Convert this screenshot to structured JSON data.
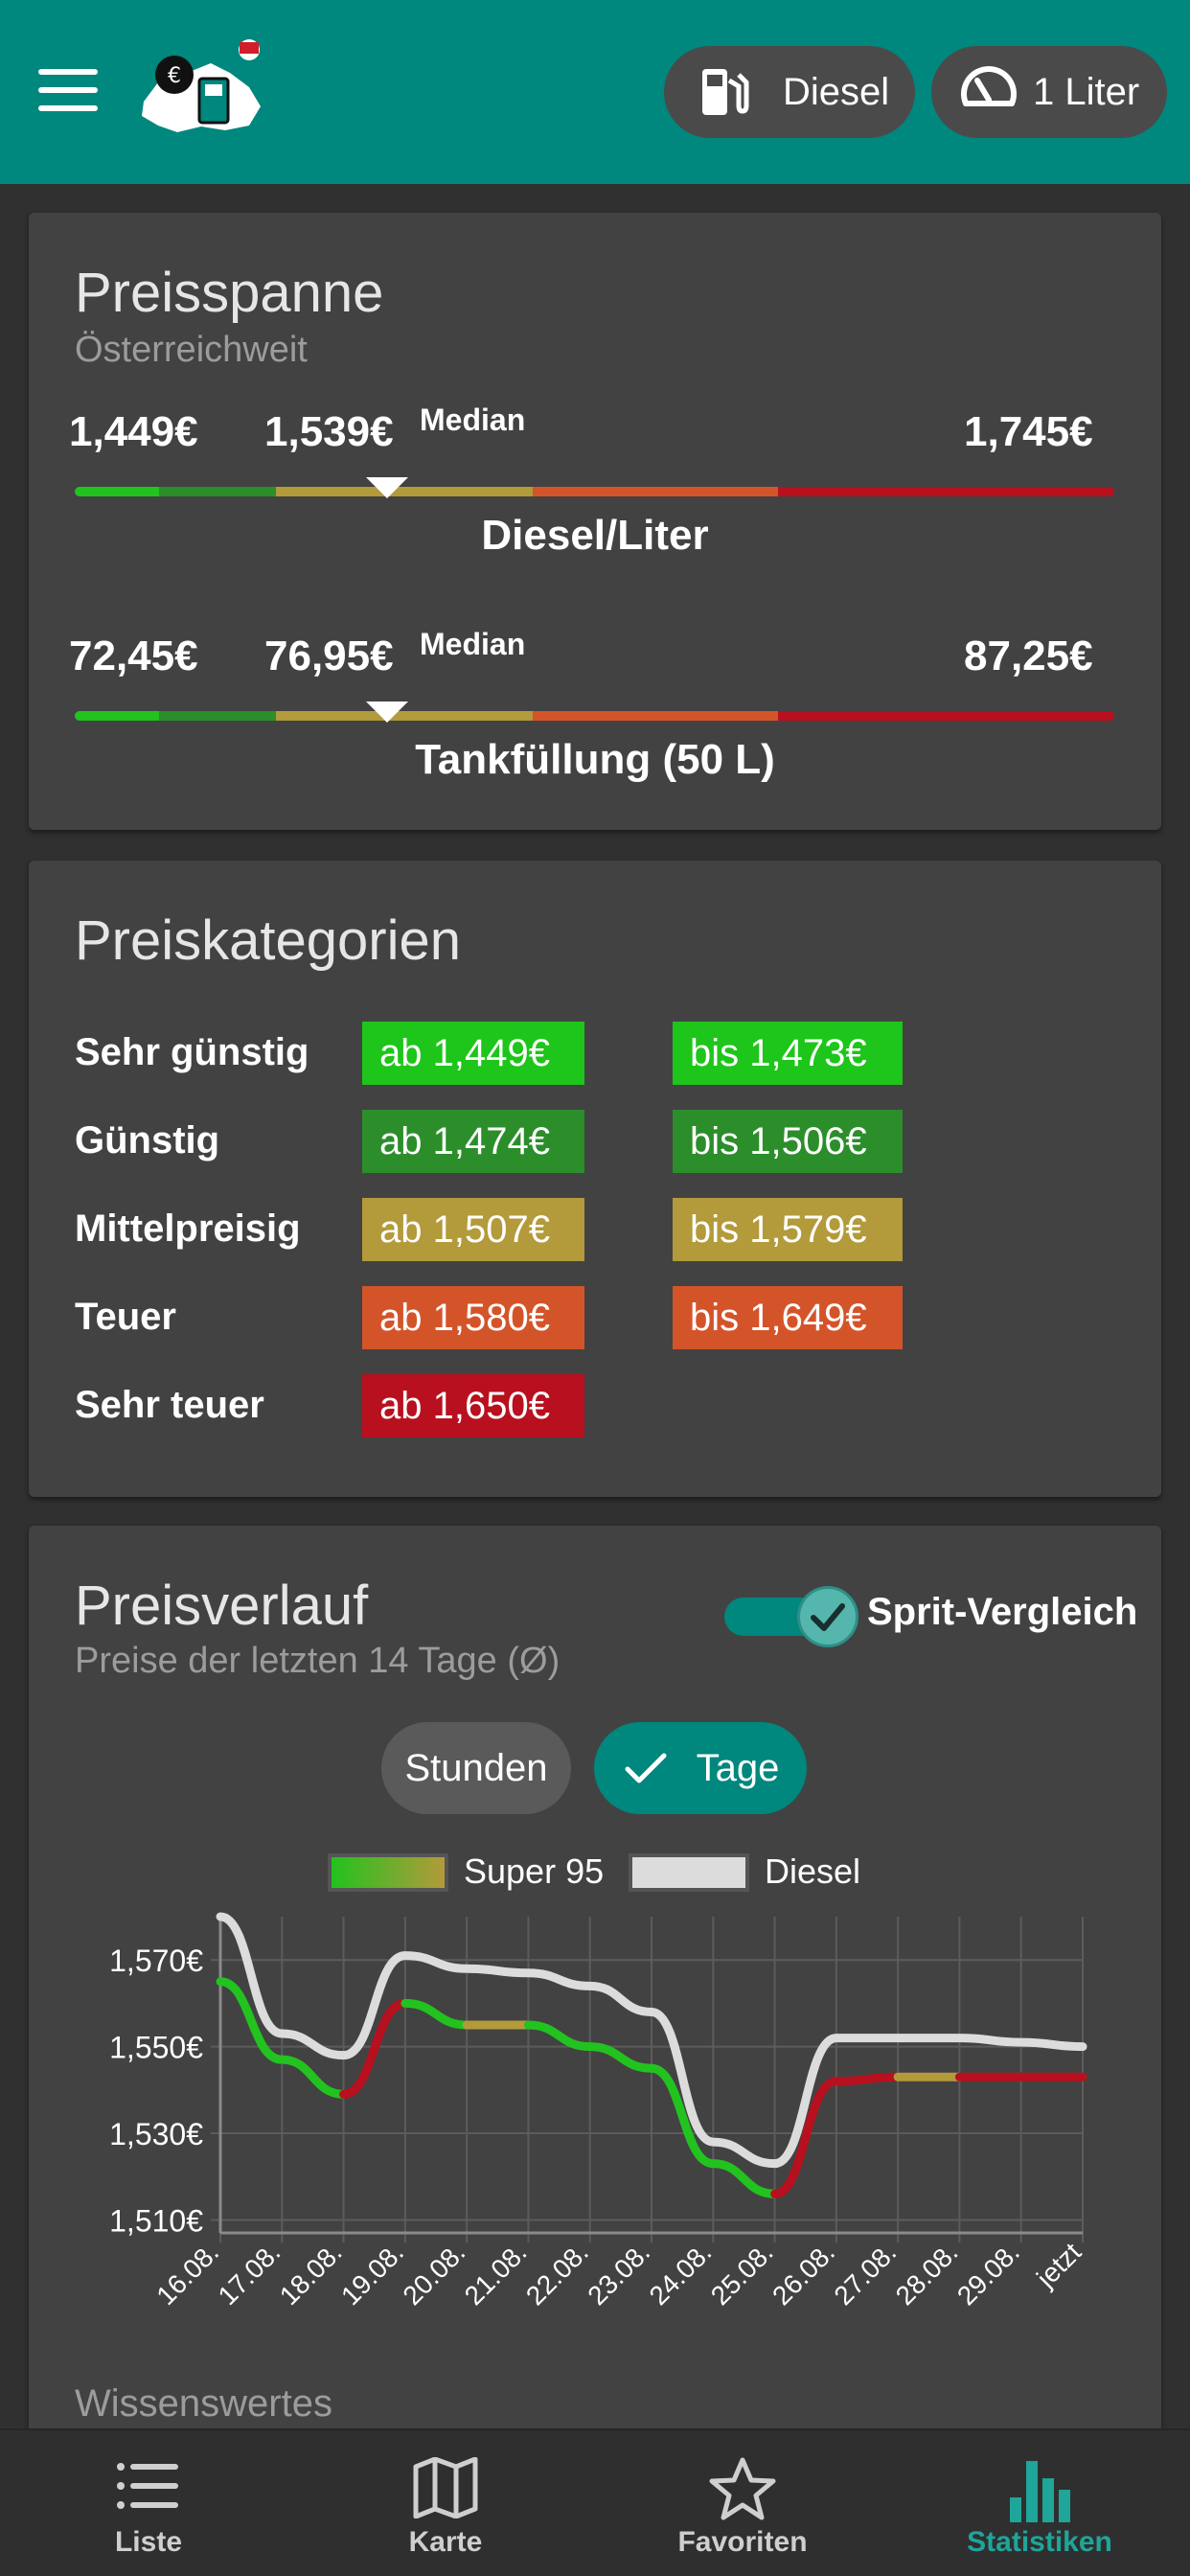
{
  "header": {
    "fuel_label": "Diesel",
    "unit_label": "1 Liter",
    "icons": [
      "menu-icon",
      "fuel-pump-icon",
      "speedometer-icon"
    ]
  },
  "price_span": {
    "title": "Preisspanne",
    "subtitle": "Österreichweit",
    "per_liter": {
      "min": "1,449€",
      "median": "1,539€",
      "median_label": "Median",
      "max": "1,745€",
      "label": "Diesel/Liter",
      "median_fraction": 0.3
    },
    "tank": {
      "min": "72,45€",
      "median": "76,95€",
      "median_label": "Median",
      "max": "87,25€",
      "label": "Tankfüllung (50 L)",
      "median_fraction": 0.3
    },
    "colors": [
      "#22c21f",
      "#2a8f2a",
      "#b39a3a",
      "#d4542a",
      "#b8101e"
    ]
  },
  "categories": {
    "title": "Preiskategorien",
    "rows": [
      {
        "label": "Sehr günstig",
        "from": "ab 1,449€",
        "to": "bis 1,473€",
        "color": "#1ec51a"
      },
      {
        "label": "Günstig",
        "from": "ab 1,474€",
        "to": "bis 1,506€",
        "color": "#2b8e2b"
      },
      {
        "label": "Mittelpreisig",
        "from": "ab 1,507€",
        "to": "bis 1,579€",
        "color": "#b39a3a"
      },
      {
        "label": "Teuer",
        "from": "ab 1,580€",
        "to": "bis 1,649€",
        "color": "#d4542a"
      },
      {
        "label": "Sehr teuer",
        "from": "ab 1,650€",
        "to": "",
        "color": "#b8101e"
      }
    ]
  },
  "history": {
    "title": "Preisverlauf",
    "subtitle": "Preise der letzten 14 Tage (Ø)",
    "toggle_label": "Sprit-Vergleich",
    "seg_hours": "Stunden",
    "seg_days": "Tage",
    "wissenswertes": "Wissenswertes"
  },
  "chart_data": {
    "type": "line",
    "x": [
      "16.08.",
      "17.08.",
      "18.08.",
      "19.08.",
      "20.08.",
      "21.08.",
      "22.08.",
      "23.08.",
      "24.08.",
      "25.08.",
      "26.08.",
      "27.08.",
      "28.08.",
      "29.08.",
      "jetzt"
    ],
    "series": [
      {
        "name": "Super 95",
        "values": [
          1.565,
          1.547,
          1.539,
          1.56,
          1.555,
          1.555,
          1.55,
          1.545,
          1.523,
          1.516,
          1.542,
          1.543,
          1.543,
          1.543,
          1.543
        ]
      },
      {
        "name": "Diesel",
        "values": [
          1.58,
          1.553,
          1.548,
          1.571,
          1.568,
          1.567,
          1.564,
          1.558,
          1.528,
          1.523,
          1.552,
          1.552,
          1.552,
          1.551,
          1.55
        ]
      }
    ],
    "y_ticks": [
      "1,570€",
      "1,550€",
      "1,530€",
      "1,510€"
    ],
    "y_tick_values": [
      1.57,
      1.55,
      1.53,
      1.51
    ],
    "ylim": [
      1.507,
      1.58
    ],
    "grid": true,
    "legend_placement": "top-center",
    "colors": {
      "super": "#22c21f",
      "super_mid": "#b39a3a",
      "super_high": "#b8101e",
      "diesel": "#dcdcdc"
    }
  },
  "nav": {
    "items": [
      {
        "label": "Liste",
        "icon": "list-icon"
      },
      {
        "label": "Karte",
        "icon": "map-icon"
      },
      {
        "label": "Favoriten",
        "icon": "star-icon"
      },
      {
        "label": "Statistiken",
        "icon": "bar-chart-icon"
      }
    ]
  }
}
